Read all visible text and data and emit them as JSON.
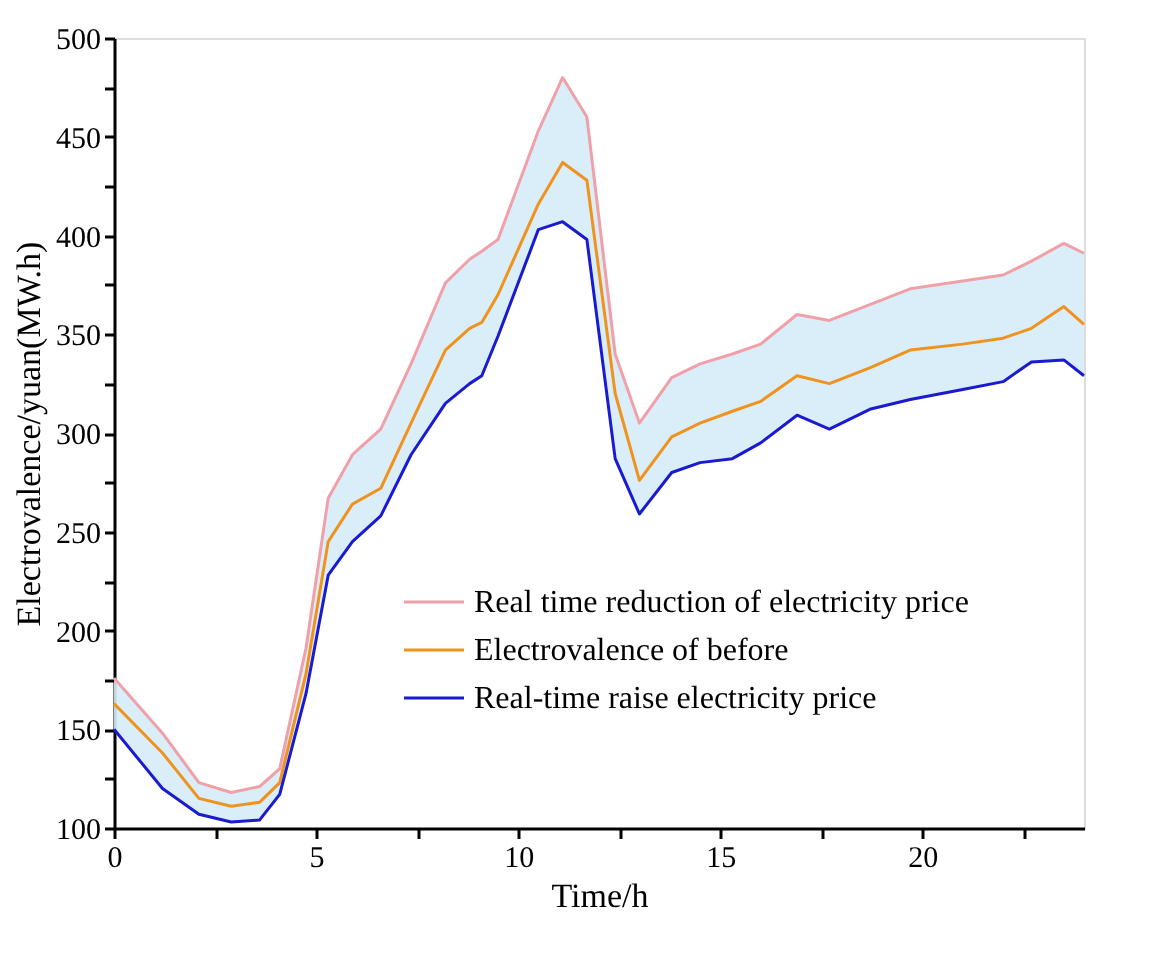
{
  "chart_data": {
    "type": "line",
    "xlabel": "Time/h",
    "ylabel": "Electrovalence/yuan(MW.h)",
    "x": [
      0,
      1.2,
      2.1,
      2.9,
      3.6,
      4.1,
      4.75,
      5.3,
      5.9,
      6.6,
      7.35,
      8.2,
      8.8,
      9.1,
      9.5,
      10.5,
      11.1,
      11.7,
      12.4,
      13.0,
      13.8,
      14.5,
      15.3,
      16.0,
      16.9,
      17.7,
      18.7,
      19.7,
      21.0,
      22.0,
      22.7,
      23.5,
      24
    ],
    "series": [
      {
        "name": "Real time reduction of electricity price",
        "color": "#f0a0a8",
        "values": [
          176,
          148,
          123,
          118,
          121,
          130,
          191,
          267,
          289,
          302,
          335,
          376,
          388,
          392,
          398,
          453,
          480,
          460,
          340,
          305,
          328,
          335,
          340,
          345,
          360,
          357,
          365,
          373,
          377,
          380,
          387,
          396,
          391
        ]
      },
      {
        "name": "Electrovalence of before",
        "color": "#f0921e",
        "values": [
          163,
          138,
          115,
          111,
          113,
          123,
          178,
          245,
          264,
          272,
          305,
          342,
          353,
          356,
          370,
          416,
          437,
          428,
          320,
          276,
          298,
          305,
          311,
          316,
          329,
          325,
          333,
          342,
          345,
          348,
          353,
          364,
          355
        ],
        "lower": [
          150,
          120,
          107,
          103,
          104,
          117,
          168,
          228,
          245,
          258,
          289,
          315,
          325,
          329,
          349,
          403,
          407,
          398,
          287,
          259,
          280,
          285,
          287,
          295,
          309,
          302,
          312,
          317,
          322,
          326,
          336,
          337,
          329
        ],
        "upper": [
          176,
          148,
          123,
          118,
          121,
          130,
          191,
          267,
          289,
          302,
          335,
          376,
          388,
          392,
          398,
          453,
          480,
          460,
          340,
          305,
          328,
          335,
          340,
          345,
          360,
          357,
          365,
          373,
          377,
          380,
          387,
          396,
          391
        ]
      },
      {
        "name": "Real-time raise electricity price",
        "color": "#1a1ad0",
        "values": [
          150,
          120,
          107,
          103,
          104,
          117,
          168,
          228,
          245,
          258,
          289,
          315,
          325,
          329,
          349,
          403,
          407,
          398,
          287,
          259,
          280,
          285,
          287,
          295,
          309,
          302,
          312,
          317,
          322,
          326,
          336,
          337,
          329
        ]
      }
    ],
    "xlim": [
      0,
      24
    ],
    "xticks": [
      0,
      {
        "value": 2.5,
        "label": null
      },
      5,
      {
        "value": 7.5,
        "label": null
      },
      10,
      {
        "value": 12.5,
        "label": null
      },
      15,
      {
        "value": 17.5,
        "label": null
      },
      20,
      {
        "value": 22.5,
        "label": null
      }
    ],
    "ylim": [
      100,
      500
    ],
    "yticks": [
      100,
      {
        "value": 125,
        "label": null
      },
      150,
      {
        "value": 175,
        "label": null
      },
      200,
      {
        "value": 225,
        "label": null
      },
      250,
      {
        "value": 275,
        "label": null
      },
      300,
      {
        "value": 325,
        "label": null
      },
      350,
      {
        "value": 375,
        "label": null
      },
      400,
      {
        "value": 425,
        "label": null
      },
      450,
      {
        "value": 475,
        "label": null
      },
      500
    ],
    "grid": false,
    "legend": "bottom right",
    "marker": "none",
    "line_style": "solid"
  }
}
